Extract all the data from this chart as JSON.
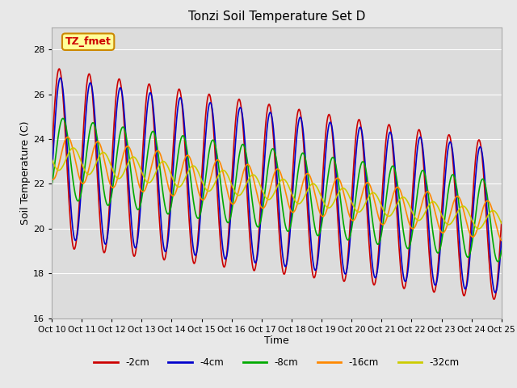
{
  "title": "Tonzi Soil Temperature Set D",
  "xlabel": "Time",
  "ylabel": "Soil Temperature (C)",
  "ylim": [
    16,
    29
  ],
  "xlim": [
    0,
    360
  ],
  "fig_bg_color": "#e8e8e8",
  "plot_bg_color": "#dcdcdc",
  "annotation_text": "TZ_fmet",
  "annotation_bg": "#ffff99",
  "annotation_border": "#cc8800",
  "annotation_color": "#cc0000",
  "colors": [
    "#cc0000",
    "#0000cc",
    "#00aa00",
    "#ff8800",
    "#cccc00"
  ],
  "depths": [
    "-2cm",
    "-4cm",
    "-8cm",
    "-16cm",
    "-32cm"
  ],
  "xtick_labels": [
    "Oct 10",
    "Oct 11",
    "Oct 12",
    "Oct 13",
    "Oct 14",
    "Oct 15",
    "Oct 16",
    "Oct 17",
    "Oct 18",
    "Oct 19",
    "Oct 20",
    "Oct 21",
    "Oct 22",
    "Oct 23",
    "Oct 24",
    "Oct 25"
  ],
  "xtick_positions": [
    0,
    24,
    48,
    72,
    96,
    120,
    144,
    168,
    192,
    216,
    240,
    264,
    288,
    312,
    336,
    360
  ],
  "ytick_positions": [
    16,
    18,
    20,
    22,
    24,
    26,
    28
  ],
  "n_points": 721,
  "period_hours": 24,
  "base_temp_start": 23.2,
  "base_temp_end": 20.3,
  "amp_2cm_start": 4.0,
  "amp_2cm_end": 3.5,
  "amp_4cm_start": 3.6,
  "amp_4cm_end": 3.2,
  "amp_8cm_start": 1.8,
  "amp_8cm_end": 1.8,
  "amp_16cm_start": 1.0,
  "amp_16cm_end": 0.85,
  "amp_32cm_start": 0.55,
  "amp_32cm_end": 0.45,
  "phase_2cm": 0.0,
  "phase_4cm": 0.25,
  "phase_8cm": 0.8,
  "phase_16cm": 1.8,
  "phase_32cm": 3.0
}
